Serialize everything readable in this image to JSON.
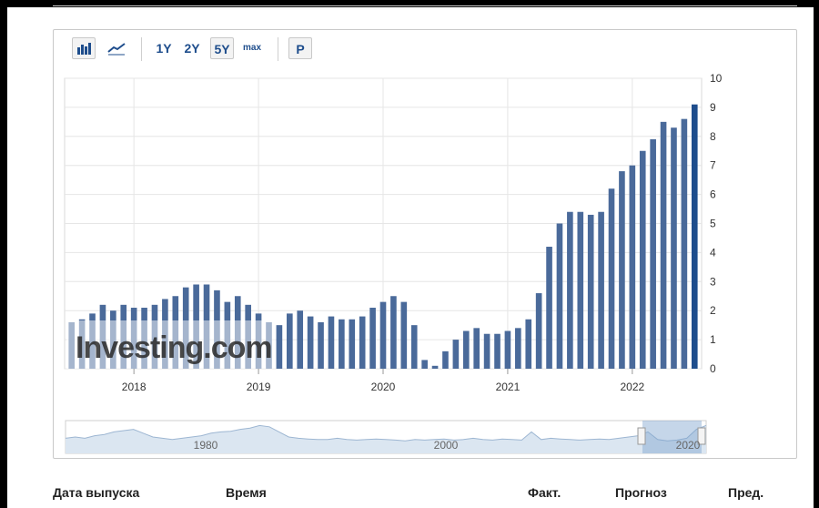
{
  "toolbar": {
    "bar_chart_icon": "bar-chart-icon",
    "line_chart_icon": "line-chart-icon",
    "range_1y": "1Y",
    "range_2y": "2Y",
    "range_5y": "5Y",
    "range_max": "max",
    "p_button": "P",
    "selected_range": "5Y"
  },
  "chart_data": {
    "type": "bar",
    "color": "#4a6a9a",
    "highlight_color": "#1e4d8c",
    "ylim": [
      0,
      10
    ],
    "yticks": [
      0,
      1,
      2,
      3,
      4,
      5,
      6,
      7,
      8,
      9,
      10
    ],
    "xticks": [
      "2018",
      "2019",
      "2020",
      "2021",
      "2022"
    ],
    "values": [
      1.6,
      1.7,
      1.9,
      2.2,
      2.0,
      2.2,
      2.1,
      2.1,
      2.2,
      2.4,
      2.5,
      2.8,
      2.9,
      2.9,
      2.7,
      2.3,
      2.5,
      2.2,
      1.9,
      1.6,
      1.5,
      1.9,
      2.0,
      1.8,
      1.6,
      1.8,
      1.7,
      1.7,
      1.8,
      2.1,
      2.3,
      2.5,
      2.3,
      1.5,
      0.3,
      0.1,
      0.6,
      1.0,
      1.3,
      1.4,
      1.2,
      1.2,
      1.3,
      1.4,
      1.7,
      2.6,
      4.2,
      5.0,
      5.4,
      5.4,
      5.3,
      5.4,
      6.2,
      6.8,
      7.0,
      7.5,
      7.9,
      8.5,
      8.3,
      8.6,
      9.1
    ],
    "navigator": {
      "labels": [
        "1980",
        "2000",
        "2020"
      ]
    }
  },
  "watermark": "Investing.com",
  "table_headers": {
    "release_date": "Дата выпуска",
    "time": "Время",
    "actual": "Факт.",
    "forecast": "Прогноз",
    "previous": "Пред."
  }
}
